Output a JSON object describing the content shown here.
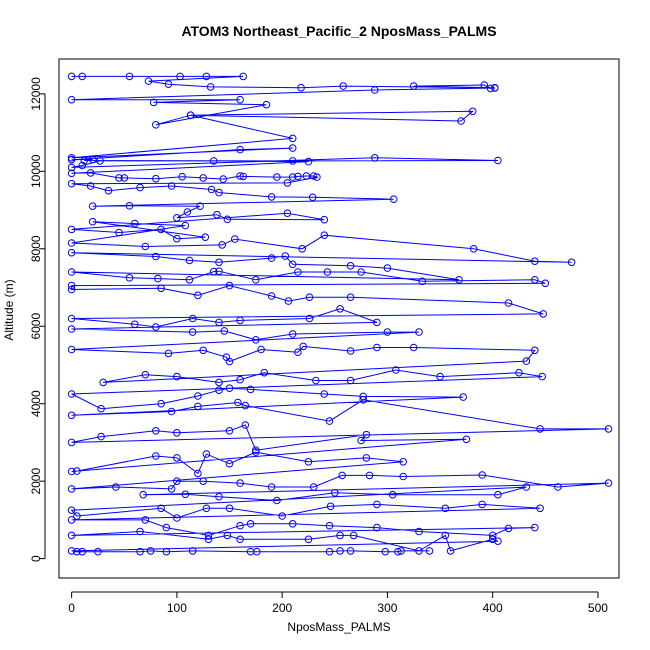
{
  "chart_data": {
    "type": "scatter",
    "title": "ATOM3 Northeast_Pacific_2 NposMass_PALMS",
    "xlabel": "NposMass_PALMS",
    "ylabel": "Altitude (m)",
    "xlim": [
      -12,
      520
    ],
    "ylim": [
      -500,
      12900
    ],
    "xticks": [
      0,
      100,
      200,
      300,
      400,
      500
    ],
    "yticks": [
      0,
      2000,
      4000,
      6000,
      8000,
      10000,
      12000
    ],
    "connected": true,
    "marker": "open-circle",
    "color": "#0000ff",
    "points": [
      [
        0,
        12450
      ],
      [
        10,
        12450
      ],
      [
        55,
        12450
      ],
      [
        103,
        12450
      ],
      [
        128,
        12450
      ],
      [
        163,
        12450
      ],
      [
        73,
        12330
      ],
      [
        92,
        12250
      ],
      [
        132,
        12180
      ],
      [
        218,
        12160
      ],
      [
        258,
        12200
      ],
      [
        402,
        12160
      ],
      [
        325,
        12200
      ],
      [
        392,
        12230
      ],
      [
        398,
        12140
      ],
      [
        402,
        12150
      ],
      [
        288,
        12100
      ],
      [
        0,
        11850
      ],
      [
        160,
        11850
      ],
      [
        78,
        11780
      ],
      [
        185,
        11720
      ],
      [
        80,
        11200
      ],
      [
        113,
        11450
      ],
      [
        370,
        11300
      ],
      [
        381,
        11550
      ],
      [
        113,
        11450
      ],
      [
        210,
        10850
      ],
      [
        0,
        10350
      ],
      [
        210,
        10600
      ],
      [
        160,
        10560
      ],
      [
        0,
        10300
      ],
      [
        20,
        10310
      ],
      [
        12,
        10280
      ],
      [
        210,
        10270
      ],
      [
        405,
        10280
      ],
      [
        288,
        10350
      ],
      [
        0,
        10100
      ],
      [
        10,
        10150
      ],
      [
        27,
        10270
      ],
      [
        135,
        10270
      ],
      [
        225,
        10250
      ],
      [
        0,
        9950
      ],
      [
        18,
        9960
      ],
      [
        45,
        9830
      ],
      [
        50,
        9830
      ],
      [
        80,
        9810
      ],
      [
        105,
        9860
      ],
      [
        125,
        9830
      ],
      [
        144,
        9800
      ],
      [
        160,
        9880
      ],
      [
        163,
        9870
      ],
      [
        195,
        9850
      ],
      [
        210,
        9850
      ],
      [
        215,
        9870
      ],
      [
        223,
        9880
      ],
      [
        230,
        9880
      ],
      [
        233,
        9850
      ],
      [
        205,
        9700
      ],
      [
        0,
        9680
      ],
      [
        18,
        9620
      ],
      [
        35,
        9500
      ],
      [
        65,
        9580
      ],
      [
        95,
        9620
      ],
      [
        133,
        9530
      ],
      [
        140,
        9450
      ],
      [
        190,
        9340
      ],
      [
        229,
        9330
      ],
      [
        306,
        9280
      ],
      [
        20,
        9100
      ],
      [
        55,
        9110
      ],
      [
        122,
        9100
      ],
      [
        110,
        8950
      ],
      [
        100,
        8800
      ],
      [
        138,
        8880
      ],
      [
        148,
        8760
      ],
      [
        240,
        8750
      ],
      [
        205,
        8920
      ],
      [
        0,
        8500
      ],
      [
        45,
        8420
      ],
      [
        85,
        8500
      ],
      [
        100,
        8260
      ],
      [
        127,
        8300
      ],
      [
        20,
        8700
      ],
      [
        60,
        8650
      ],
      [
        108,
        8600
      ],
      [
        0,
        8150
      ],
      [
        70,
        8060
      ],
      [
        143,
        8100
      ],
      [
        155,
        8250
      ],
      [
        219,
        8000
      ],
      [
        240,
        8350
      ],
      [
        382,
        8000
      ],
      [
        440,
        7680
      ],
      [
        475,
        7650
      ],
      [
        0,
        7900
      ],
      [
        80,
        7800
      ],
      [
        112,
        7700
      ],
      [
        140,
        7650
      ],
      [
        190,
        7760
      ],
      [
        203,
        7810
      ],
      [
        210,
        7600
      ],
      [
        265,
        7560
      ],
      [
        300,
        7500
      ],
      [
        368,
        7200
      ],
      [
        0,
        7400
      ],
      [
        55,
        7250
      ],
      [
        82,
        7230
      ],
      [
        112,
        7200
      ],
      [
        135,
        7410
      ],
      [
        140,
        7420
      ],
      [
        175,
        7200
      ],
      [
        215,
        7400
      ],
      [
        243,
        7400
      ],
      [
        275,
        7400
      ],
      [
        333,
        7160
      ],
      [
        440,
        7200
      ],
      [
        450,
        7110
      ],
      [
        0,
        7050
      ],
      [
        0,
        6950
      ],
      [
        85,
        6980
      ],
      [
        120,
        6800
      ],
      [
        150,
        7050
      ],
      [
        190,
        6780
      ],
      [
        206,
        6650
      ],
      [
        226,
        6750
      ],
      [
        265,
        6750
      ],
      [
        415,
        6600
      ],
      [
        448,
        6320
      ],
      [
        0,
        6200
      ],
      [
        60,
        6050
      ],
      [
        80,
        5980
      ],
      [
        115,
        6200
      ],
      [
        140,
        6100
      ],
      [
        160,
        6150
      ],
      [
        226,
        6200
      ],
      [
        255,
        6450
      ],
      [
        290,
        6100
      ],
      [
        0,
        5930
      ],
      [
        115,
        5850
      ],
      [
        145,
        5880
      ],
      [
        175,
        5650
      ],
      [
        210,
        5800
      ],
      [
        300,
        5850
      ],
      [
        330,
        5850
      ],
      [
        0,
        5400
      ],
      [
        92,
        5300
      ],
      [
        125,
        5380
      ],
      [
        147,
        5200
      ],
      [
        150,
        5090
      ],
      [
        180,
        5400
      ],
      [
        215,
        5330
      ],
      [
        220,
        5480
      ],
      [
        265,
        5360
      ],
      [
        290,
        5450
      ],
      [
        325,
        5450
      ],
      [
        440,
        5380
      ],
      [
        432,
        5100
      ],
      [
        30,
        4550
      ],
      [
        70,
        4750
      ],
      [
        100,
        4700
      ],
      [
        140,
        4550
      ],
      [
        160,
        4620
      ],
      [
        183,
        4800
      ],
      [
        232,
        4600
      ],
      [
        265,
        4600
      ],
      [
        308,
        4870
      ],
      [
        350,
        4700
      ],
      [
        425,
        4800
      ],
      [
        447,
        4700
      ],
      [
        0,
        4250
      ],
      [
        28,
        3870
      ],
      [
        85,
        4000
      ],
      [
        120,
        4200
      ],
      [
        140,
        4350
      ],
      [
        150,
        4400
      ],
      [
        170,
        4370
      ],
      [
        240,
        4250
      ],
      [
        277,
        4190
      ],
      [
        372,
        4170
      ],
      [
        0,
        3700
      ],
      [
        95,
        3800
      ],
      [
        120,
        3930
      ],
      [
        158,
        4030
      ],
      [
        165,
        3950
      ],
      [
        245,
        3550
      ],
      [
        277,
        4100
      ],
      [
        445,
        3350
      ],
      [
        510,
        3350
      ],
      [
        0,
        3000
      ],
      [
        28,
        3150
      ],
      [
        80,
        3300
      ],
      [
        100,
        3250
      ],
      [
        150,
        3300
      ],
      [
        165,
        3450
      ],
      [
        175,
        2800
      ],
      [
        280,
        3200
      ],
      [
        275,
        3050
      ],
      [
        375,
        3080
      ],
      [
        0,
        2250
      ],
      [
        5,
        2260
      ],
      [
        80,
        2650
      ],
      [
        100,
        2600
      ],
      [
        120,
        2200
      ],
      [
        128,
        2700
      ],
      [
        150,
        2450
      ],
      [
        175,
        2750
      ],
      [
        225,
        2500
      ],
      [
        280,
        2600
      ],
      [
        315,
        2500
      ],
      [
        0,
        1800
      ],
      [
        42,
        1850
      ],
      [
        95,
        1800
      ],
      [
        100,
        2000
      ],
      [
        125,
        2000
      ],
      [
        160,
        1950
      ],
      [
        190,
        1850
      ],
      [
        230,
        1850
      ],
      [
        257,
        2150
      ],
      [
        283,
        2150
      ],
      [
        315,
        2120
      ],
      [
        390,
        2160
      ],
      [
        462,
        1850
      ],
      [
        510,
        1950
      ],
      [
        68,
        1650
      ],
      [
        108,
        1660
      ],
      [
        140,
        1600
      ],
      [
        195,
        1500
      ],
      [
        250,
        1700
      ],
      [
        305,
        1650
      ],
      [
        405,
        1650
      ],
      [
        432,
        1850
      ],
      [
        0,
        1250
      ],
      [
        5,
        1100
      ],
      [
        85,
        1300
      ],
      [
        100,
        1050
      ],
      [
        128,
        1300
      ],
      [
        150,
        1300
      ],
      [
        200,
        1100
      ],
      [
        246,
        1350
      ],
      [
        290,
        1400
      ],
      [
        355,
        1300
      ],
      [
        390,
        1400
      ],
      [
        445,
        1300
      ],
      [
        0,
        1000
      ],
      [
        70,
        1000
      ],
      [
        90,
        800
      ],
      [
        130,
        600
      ],
      [
        160,
        850
      ],
      [
        170,
        900
      ],
      [
        210,
        900
      ],
      [
        245,
        850
      ],
      [
        290,
        800
      ],
      [
        330,
        700
      ],
      [
        400,
        600
      ],
      [
        415,
        780
      ],
      [
        440,
        800
      ],
      [
        0,
        600
      ],
      [
        65,
        700
      ],
      [
        130,
        500
      ],
      [
        148,
        600
      ],
      [
        160,
        500
      ],
      [
        225,
        500
      ],
      [
        255,
        600
      ],
      [
        268,
        600
      ],
      [
        330,
        200
      ],
      [
        355,
        600
      ],
      [
        360,
        200
      ],
      [
        400,
        500
      ],
      [
        405,
        450
      ],
      [
        0,
        200
      ],
      [
        5,
        180
      ],
      [
        10,
        180
      ],
      [
        25,
        180
      ],
      [
        65,
        180
      ],
      [
        75,
        200
      ],
      [
        90,
        180
      ],
      [
        115,
        200
      ],
      [
        170,
        180
      ],
      [
        176,
        180
      ],
      [
        245,
        180
      ],
      [
        255,
        200
      ],
      [
        265,
        200
      ],
      [
        298,
        180
      ],
      [
        310,
        180
      ],
      [
        313,
        200
      ],
      [
        340,
        200
      ]
    ]
  }
}
